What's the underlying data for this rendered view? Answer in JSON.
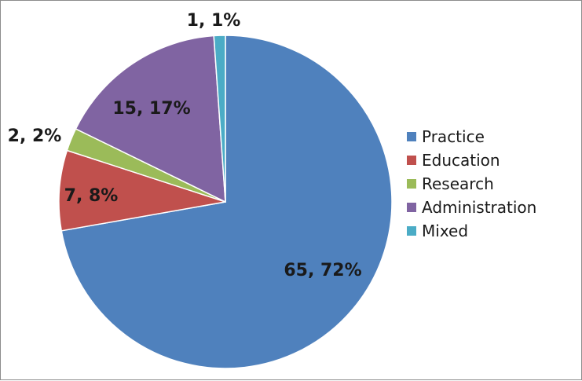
{
  "chart_data": {
    "type": "pie",
    "title": "",
    "legend_position": "right",
    "start_angle_deg": 0,
    "direction": "clockwise",
    "slices": [
      {
        "name": "Practice",
        "value": 65,
        "percent": 72,
        "label": "65, 72%",
        "color": "#4f81bd"
      },
      {
        "name": "Education",
        "value": 7,
        "percent": 8,
        "label": "7, 8%",
        "color": "#c0504d"
      },
      {
        "name": "Research",
        "value": 2,
        "percent": 2,
        "label": "2, 2%",
        "color": "#9bbb59"
      },
      {
        "name": "Administration",
        "value": 15,
        "percent": 17,
        "label": "15, 17%",
        "color": "#8064a2"
      },
      {
        "name": "Mixed",
        "value": 1,
        "percent": 1,
        "label": "1, 1%",
        "color": "#4bacc6"
      }
    ]
  }
}
